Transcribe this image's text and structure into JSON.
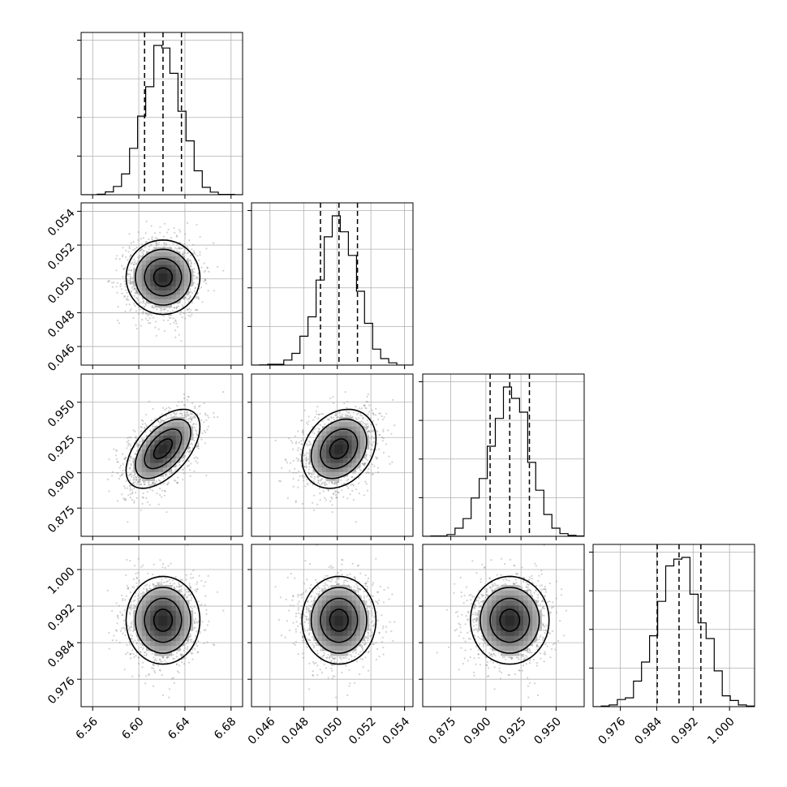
{
  "chart_data": {
    "type": "corner",
    "dimensions": [
      {
        "mean": 6.621,
        "sd": 0.016,
        "range": [
          6.55,
          6.69
        ],
        "quantiles": [
          6.605,
          6.621,
          6.637
        ],
        "ticks": [
          6.56,
          6.6,
          6.64,
          6.68
        ],
        "tick_labels": [
          "6.56",
          "6.60",
          "6.64",
          "6.68"
        ]
      },
      {
        "mean": 0.0501,
        "sd": 0.0011,
        "range": [
          0.0449,
          0.0545
        ],
        "quantiles": [
          0.049,
          0.0501,
          0.0512
        ],
        "ticks": [
          0.046,
          0.048,
          0.05,
          0.052,
          0.054
        ],
        "tick_labels": [
          "0.046",
          "0.048",
          "0.050",
          "0.052",
          "0.054"
        ]
      },
      {
        "mean": 0.917,
        "sd": 0.014,
        "range": [
          0.855,
          0.97
        ],
        "quantiles": [
          0.903,
          0.917,
          0.931
        ],
        "ticks": [
          0.875,
          0.9,
          0.925,
          0.95
        ],
        "tick_labels": [
          "0.875",
          "0.900",
          "0.925",
          "0.950"
        ]
      },
      {
        "mean": 0.9889,
        "sd": 0.0048,
        "range": [
          0.97,
          1.0055
        ],
        "quantiles": [
          0.9841,
          0.9889,
          0.9937
        ],
        "ticks": [
          0.976,
          0.984,
          0.992,
          1.0
        ],
        "tick_labels": [
          "0.976",
          "0.984",
          "0.992",
          "1.000"
        ]
      }
    ],
    "correlations": [
      [
        1.0,
        0.0,
        0.55,
        0.0
      ],
      [
        0.0,
        1.0,
        0.25,
        0.0
      ],
      [
        0.55,
        0.25,
        1.0,
        0.0
      ],
      [
        0.0,
        0.0,
        0.0,
        1.0
      ]
    ],
    "histogram_bins": 20,
    "contour_levels_sigma": [
      0.5,
      1.0,
      1.5,
      2.0
    ],
    "grid": true,
    "title": "",
    "xlabel": "",
    "ylabel": ""
  }
}
